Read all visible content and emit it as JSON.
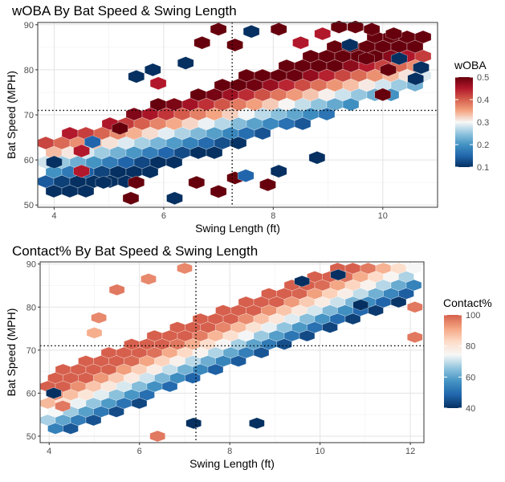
{
  "chart_data": [
    {
      "type": "heatmap",
      "title": "wOBA By Bat Speed & Swing Length",
      "xlabel": "Swing Length (ft)",
      "ylabel": "Bat Speed (MPH)",
      "xlim": [
        3.7,
        11.0
      ],
      "ylim": [
        49.5,
        90.5
      ],
      "xticks": [
        4,
        6,
        8,
        10
      ],
      "yticks": [
        50,
        60,
        70,
        80,
        90
      ],
      "x_tick_labels": [
        "4",
        "6",
        "8",
        "10"
      ],
      "y_tick_labels": [
        "50",
        "60",
        "70",
        "80",
        "90"
      ],
      "ref_lines": {
        "x": 7.25,
        "y": 71
      },
      "grid": true,
      "legend": {
        "title": "wOBA",
        "position": "right",
        "range": [
          0.1,
          0.5
        ],
        "ticks": [
          0.1,
          0.2,
          0.3,
          0.4,
          0.5
        ],
        "tick_labels": [
          "0.1",
          "0.2",
          "0.3",
          "0.4",
          "0.5"
        ],
        "colors": [
          "#053061",
          "#2166ac",
          "#4393c3",
          "#92c5de",
          "#f7f7f7",
          "#f4a582",
          "#d6604d",
          "#b2182b",
          "#67000d"
        ]
      },
      "bins": [
        {
          "x": 4,
          "y": 59.5,
          "v": 0.1
        },
        {
          "x": 4.7,
          "y": 64,
          "v": 0.15
        },
        {
          "x": 4.5,
          "y": 62,
          "v": 0.45
        },
        {
          "x": 4.5,
          "y": 57.5,
          "v": 0.45
        },
        {
          "x": 4.9,
          "y": 55,
          "v": 0.1
        },
        {
          "x": 5.2,
          "y": 67,
          "v": 0.5
        },
        {
          "x": 5.4,
          "y": 51.5,
          "v": 0.5
        },
        {
          "x": 5.5,
          "y": 55,
          "v": 0.5
        },
        {
          "x": 6.2,
          "y": 51.5,
          "v": 0.1
        },
        {
          "x": 7.0,
          "y": 53,
          "v": 0.5
        },
        {
          "x": 7.3,
          "y": 56,
          "v": 0.5
        },
        {
          "x": 6.6,
          "y": 55,
          "v": 0.5
        },
        {
          "x": 7.9,
          "y": 54.5,
          "v": 0.5
        },
        {
          "x": 7.5,
          "y": 56.5,
          "v": 0.15
        },
        {
          "x": 5.9,
          "y": 77,
          "v": 0.45
        },
        {
          "x": 5.8,
          "y": 80,
          "v": 0.1
        },
        {
          "x": 5.5,
          "y": 78.5,
          "v": 0.1
        },
        {
          "x": 6.4,
          "y": 81.5,
          "v": 0.1
        },
        {
          "x": 6.7,
          "y": 86,
          "v": 0.5
        },
        {
          "x": 7.0,
          "y": 89,
          "v": 0.5
        },
        {
          "x": 7.3,
          "y": 85.5,
          "v": 0.5
        },
        {
          "x": 7.6,
          "y": 88.5,
          "v": 0.1
        },
        {
          "x": 8.1,
          "y": 89,
          "v": 0.5
        },
        {
          "x": 8.5,
          "y": 86,
          "v": 0.45
        },
        {
          "x": 8.9,
          "y": 88,
          "v": 0.45
        },
        {
          "x": 9.2,
          "y": 89.5,
          "v": 0.5
        },
        {
          "x": 9.5,
          "y": 89.5,
          "v": 0.5
        },
        {
          "x": 9.8,
          "y": 89,
          "v": 0.5
        },
        {
          "x": 10.2,
          "y": 88,
          "v": 0.5
        },
        {
          "x": 9.7,
          "y": 82.5,
          "v": 0.5
        },
        {
          "x": 10.1,
          "y": 80,
          "v": 0.5
        },
        {
          "x": 10.0,
          "y": 74.5,
          "v": 0.5
        },
        {
          "x": 10.7,
          "y": 80.5,
          "v": 0.1
        },
        {
          "x": 10.6,
          "y": 78,
          "v": 0.1
        },
        {
          "x": 10.3,
          "y": 82.5,
          "v": 0.1
        },
        {
          "x": 9.4,
          "y": 85.5,
          "v": 0.1
        },
        {
          "x": 8.1,
          "y": 57.5,
          "v": 0.1
        },
        {
          "x": 8.8,
          "y": 60.5,
          "v": 0.1
        }
      ]
    },
    {
      "type": "heatmap",
      "title": "Contact% By Bat Speed & Swing Length",
      "xlabel": "Swing Length (ft)",
      "ylabel": "Bat Speed (MPH)",
      "xlim": [
        3.8,
        12.3
      ],
      "ylim": [
        48.5,
        90.5
      ],
      "xticks": [
        4,
        6,
        8,
        10,
        12
      ],
      "yticks": [
        50,
        60,
        70,
        80,
        90
      ],
      "x_tick_labels": [
        "4",
        "6",
        "8",
        "10",
        "12"
      ],
      "y_tick_labels": [
        "50",
        "60",
        "70",
        "80",
        "90"
      ],
      "ref_lines": {
        "x": 7.25,
        "y": 71
      },
      "grid": true,
      "legend": {
        "title": "Contact%",
        "position": "right",
        "range": [
          40,
          100
        ],
        "ticks": [
          40,
          60,
          80,
          100
        ],
        "tick_labels": [
          "40",
          "60",
          "80",
          "100"
        ],
        "colors": [
          "#053061",
          "#2166ac",
          "#4393c3",
          "#92c5de",
          "#f7f7f7",
          "#fddbc7",
          "#f4a582",
          "#d6604d"
        ]
      },
      "bins": [
        {
          "x": 12.1,
          "y": 80,
          "v": 97
        },
        {
          "x": 12.1,
          "y": 73,
          "v": 97
        },
        {
          "x": 6.4,
          "y": 50,
          "v": 97
        },
        {
          "x": 7.2,
          "y": 53,
          "v": 40
        },
        {
          "x": 8.6,
          "y": 53,
          "v": 40
        },
        {
          "x": 5.5,
          "y": 84,
          "v": 97
        },
        {
          "x": 6.2,
          "y": 86.5,
          "v": 95
        },
        {
          "x": 7.0,
          "y": 89,
          "v": 95
        },
        {
          "x": 9.6,
          "y": 86,
          "v": 40
        },
        {
          "x": 10.4,
          "y": 87.5,
          "v": 40
        },
        {
          "x": 10.9,
          "y": 80.5,
          "v": 40
        },
        {
          "x": 4.1,
          "y": 60,
          "v": 40
        },
        {
          "x": 4.3,
          "y": 57,
          "v": 97
        },
        {
          "x": 5.0,
          "y": 74,
          "v": 90
        },
        {
          "x": 5.1,
          "y": 77.5,
          "v": 95
        }
      ]
    }
  ]
}
